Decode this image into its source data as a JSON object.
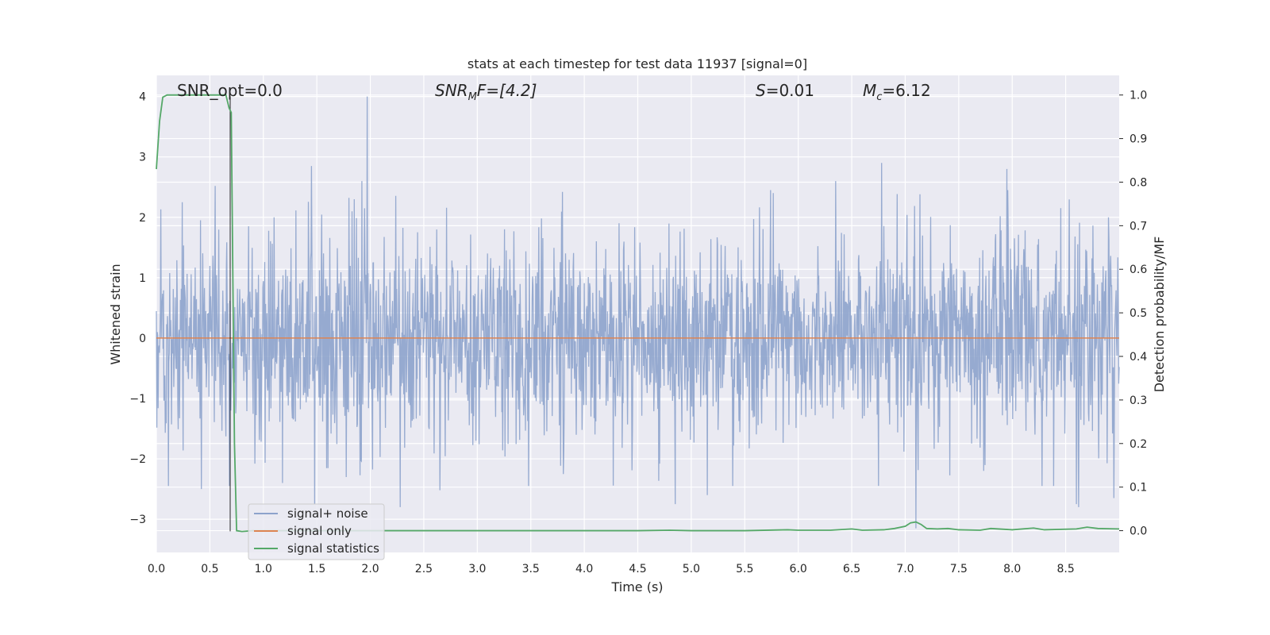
{
  "chart_data": {
    "type": "line",
    "title": "stats at each timestep for test data 11937 [signal=0]",
    "xlabel": "Time (s)",
    "ylabel": "Whitened strain",
    "ylabel_right": "Detection probability/MF",
    "xlim": [
      0.0,
      9.0
    ],
    "ylim": [
      -3.55,
      4.35
    ],
    "ylim_right": [
      -0.05,
      1.045
    ],
    "x_ticks": [
      "0.0",
      "0.5",
      "1.0",
      "1.5",
      "2.0",
      "2.5",
      "3.0",
      "3.5",
      "4.0",
      "4.5",
      "5.0",
      "5.5",
      "6.0",
      "6.5",
      "7.0",
      "7.5",
      "8.0",
      "8.5"
    ],
    "y_ticks": [
      "−3",
      "−2",
      "−1",
      "0",
      "1",
      "2",
      "3",
      "4"
    ],
    "y_ticks_right": [
      "0.0",
      "0.1",
      "0.2",
      "0.3",
      "0.4",
      "0.5",
      "0.6",
      "0.7",
      "0.8",
      "0.9",
      "1.0"
    ],
    "grid": true,
    "legend_position": "lower-left",
    "annotations": {
      "snr_opt": "SNR_opt=0.0",
      "snr_mf_main": "SNR",
      "snr_mf_sub": "M",
      "snr_mf_rest": "F=[4.2]",
      "s_main": "S",
      "s_rest": "=0.01",
      "mc_main": "M",
      "mc_sub": "c",
      "mc_rest": "=6.12"
    },
    "series": [
      {
        "name": "signal+ noise",
        "color": "#8da3cc",
        "note_values": "dense whitened noise, roughly Gaussian with std ~0.85, spikes up to 4.0 near t=1.97 and down to -3.2 near t=7.1",
        "sample_rate_hz": 240,
        "peaks": [
          [
            0.24,
            2.25
          ],
          [
            0.42,
            -2.5
          ],
          [
            0.55,
            2.52
          ],
          [
            1.1,
            2.0
          ],
          [
            1.18,
            -2.4
          ],
          [
            1.45,
            2.85
          ],
          [
            1.48,
            -2.75
          ],
          [
            1.83,
            2.1
          ],
          [
            1.85,
            2.3
          ],
          [
            1.92,
            2.6
          ],
          [
            1.97,
            4.0
          ],
          [
            2.28,
            -2.8
          ],
          [
            2.65,
            -2.52
          ],
          [
            4.85,
            -2.75
          ],
          [
            5.15,
            -2.6
          ],
          [
            6.35,
            2.6
          ],
          [
            6.78,
            2.9
          ],
          [
            7.1,
            -3.15
          ],
          [
            7.95,
            2.8
          ],
          [
            8.6,
            -2.75
          ],
          [
            8.62,
            -2.8
          ],
          [
            8.95,
            -2.65
          ]
        ]
      },
      {
        "name": "signal only",
        "color": "#dd8452",
        "x": [
          0.0,
          9.0
        ],
        "y": [
          0.0,
          0.0
        ]
      },
      {
        "name": "signal statistics",
        "color": "#55a868",
        "axis": "right",
        "x": [
          0.0,
          0.03,
          0.06,
          0.1,
          0.2,
          0.3,
          0.4,
          0.5,
          0.6,
          0.65,
          0.68,
          0.7,
          0.73,
          0.75,
          0.8,
          0.9,
          1.0,
          2.0,
          3.0,
          4.0,
          4.5,
          4.8,
          5.0,
          5.5,
          5.9,
          6.0,
          6.3,
          6.5,
          6.6,
          6.8,
          6.9,
          7.0,
          7.05,
          7.1,
          7.15,
          7.2,
          7.3,
          7.4,
          7.5,
          7.7,
          7.8,
          8.0,
          8.2,
          8.3,
          8.6,
          8.7,
          8.8,
          9.0
        ],
        "y": [
          0.83,
          0.94,
          0.995,
          1.0,
          1.0,
          1.0,
          1.0,
          1.0,
          1.0,
          1.0,
          0.97,
          0.96,
          0.2,
          0.0,
          -0.002,
          0.0,
          0.0,
          0.0,
          0.0,
          0.0,
          0.0,
          0.001,
          0.0,
          0.0,
          0.002,
          0.001,
          0.001,
          0.004,
          0.001,
          0.002,
          0.005,
          0.01,
          0.018,
          0.02,
          0.014,
          0.005,
          0.004,
          0.005,
          0.002,
          0.001,
          0.005,
          0.002,
          0.006,
          0.002,
          0.004,
          0.008,
          0.005,
          0.004
        ]
      },
      {
        "name": "",
        "color": "#000000",
        "note": "vertical marker line at detection time",
        "x": [
          0.69,
          0.69
        ],
        "y": [
          -3.2,
          4.0
        ]
      }
    ]
  }
}
